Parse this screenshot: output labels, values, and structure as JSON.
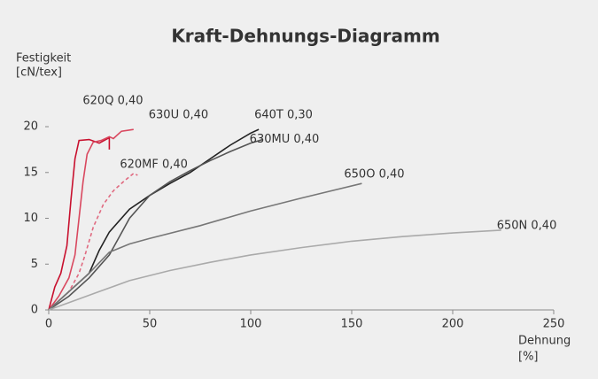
{
  "chart_data": {
    "type": "line",
    "title": "Kraft-Dehnungs-Diagramm",
    "y_label": [
      "Festigkeit",
      "[cN/tex]"
    ],
    "x_label": [
      "Dehnung",
      "[%]"
    ],
    "xlim": [
      0,
      250
    ],
    "xticks": [
      0,
      50,
      100,
      150,
      200,
      250
    ],
    "ylim": [
      0,
      23
    ],
    "yticks": [
      0,
      5,
      10,
      15,
      20
    ],
    "series": [
      {
        "name": "620Q 0,40",
        "color": "#c8102e",
        "dashed": false,
        "x": [
          0,
          3,
          6,
          9,
          11,
          13,
          15,
          20,
          25,
          30,
          30
        ],
        "values": [
          0,
          2.5,
          4,
          7,
          12,
          16.5,
          18.5,
          18.6,
          18.2,
          18.8,
          17.5
        ]
      },
      {
        "name": "630U 0,40",
        "color": "#d9485f",
        "dashed": false,
        "x": [
          0,
          5,
          10,
          13,
          15,
          17,
          19,
          22,
          26,
          30,
          32,
          36,
          42
        ],
        "values": [
          0,
          1.5,
          3.5,
          6,
          10,
          14,
          17,
          18.3,
          18.5,
          18.9,
          18.7,
          19.5,
          19.7
        ]
      },
      {
        "name": "620MF 0,40",
        "color": "#e06a80",
        "dashed": true,
        "x": [
          0,
          10,
          15,
          18,
          22,
          27,
          32,
          37,
          42,
          44
        ],
        "values": [
          0,
          2,
          4,
          6,
          9,
          11.5,
          13,
          14,
          14.9,
          14.7
        ]
      },
      {
        "name": "640T 0,30",
        "color": "#222222",
        "dashed": false,
        "x": [
          0,
          10,
          20,
          25,
          30,
          40,
          50,
          60,
          70,
          80,
          90,
          100,
          104
        ],
        "values": [
          0,
          2,
          4,
          6.5,
          8.5,
          11,
          12.5,
          13.8,
          15,
          16.5,
          18,
          19.3,
          19.7
        ]
      },
      {
        "name": "630MU 0,40",
        "color": "#555555",
        "dashed": false,
        "x": [
          0,
          10,
          20,
          30,
          35,
          40,
          50,
          60,
          70,
          80,
          90,
          100,
          106
        ],
        "values": [
          0,
          1.5,
          3.5,
          6,
          8,
          10,
          12.5,
          14,
          15.2,
          16.3,
          17.3,
          18.2,
          18.6
        ]
      },
      {
        "name": "650O 0,40",
        "color": "#777777",
        "dashed": false,
        "x": [
          0,
          10,
          20,
          30,
          40,
          50,
          75,
          100,
          125,
          155
        ],
        "values": [
          0,
          2,
          4,
          6.3,
          7.2,
          7.8,
          9.2,
          10.8,
          12.2,
          13.8
        ]
      },
      {
        "name": "650N 0,40",
        "color": "#aaaaaa",
        "dashed": false,
        "x": [
          0,
          10,
          25,
          40,
          60,
          80,
          100,
          125,
          150,
          175,
          200,
          224
        ],
        "values": [
          0,
          0.8,
          2,
          3.2,
          4.3,
          5.2,
          6,
          6.8,
          7.5,
          8,
          8.4,
          8.7
        ]
      }
    ]
  }
}
